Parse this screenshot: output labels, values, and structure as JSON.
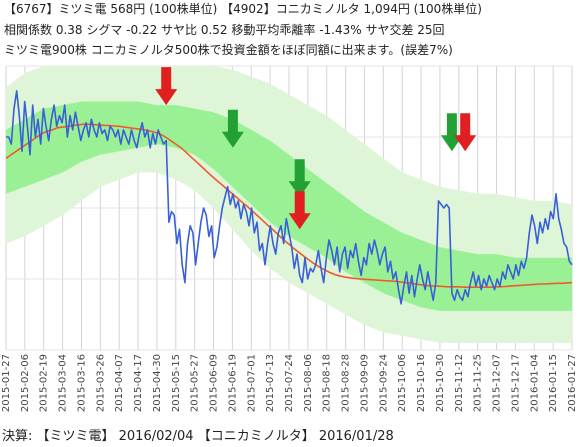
{
  "header": {
    "line1": "【6767】ミツミ電  568円 (100株単位) 【4902】コニカミノルタ 1,094円 (100株単位)",
    "line2": "相関係数 0.38 シグマ -0.22 サヤ比 0.52 移動平均乖離率 -1.43% サヤ交差 25回",
    "line3": "ミツミ電900株 コニカミノルタ500株で投資金額をほぼ同額に出来ます。(誤差7%)"
  },
  "footer": "決算: 【ミツミ電】 2016/02/04 【コニカミノルタ】 2016/01/28",
  "colors": {
    "ratio_line": "#3a5fd8",
    "moving_average": "#f05a28",
    "band_outer": "#dff5d8",
    "band_inner": "#8ef08a",
    "buy_arrow": "#22a033",
    "sell_arrow": "#e02020",
    "grid": "#d4d4d4"
  },
  "chart_data": {
    "type": "line",
    "x_ticks": [
      "2015-01-27",
      "2015-02-06",
      "2015-02-19",
      "2015-03-04",
      "2015-03-16",
      "2015-03-26",
      "2015-04-07",
      "2015-04-17",
      "2015-04-30",
      "2015-05-15",
      "2015-05-27",
      "2015-06-09",
      "2015-06-19",
      "2015-07-01",
      "2015-07-13",
      "2015-07-24",
      "2015-08-06",
      "2015-08-18",
      "2015-08-28",
      "2015-09-09",
      "2015-09-24",
      "2015-10-06",
      "2015-10-16",
      "2015-10-30",
      "2015-11-12",
      "2015-11-25",
      "2015-12-07",
      "2015-12-17",
      "2016-01-04",
      "2016-01-15",
      "2016-01-27"
    ],
    "series": [
      {
        "values": [
          0.6,
          0.6,
          0.58,
          0.68,
          0.73,
          0.66,
          0.56,
          0.7,
          0.63,
          0.55,
          0.69,
          0.6,
          0.65,
          0.58,
          0.68,
          0.63,
          0.59,
          0.65,
          0.69,
          0.63,
          0.66,
          0.64,
          0.69,
          0.6,
          0.66,
          0.62,
          0.67,
          0.63,
          0.59,
          0.62,
          0.64,
          0.6,
          0.65,
          0.62,
          0.6,
          0.64,
          0.61,
          0.62,
          0.59,
          0.63,
          0.62,
          0.6,
          0.62,
          0.58,
          0.62,
          0.6,
          0.58,
          0.62,
          0.59,
          0.57,
          0.61,
          0.64,
          0.6,
          0.62,
          0.57,
          0.61,
          0.58,
          0.62,
          0.6,
          0.58,
          0.59,
          0.36,
          0.39,
          0.38,
          0.3,
          0.34,
          0.24,
          0.19,
          0.3,
          0.35,
          0.33,
          0.24,
          0.3,
          0.36,
          0.4,
          0.38,
          0.32,
          0.35,
          0.26,
          0.29,
          0.35,
          0.4,
          0.43,
          0.46,
          0.41,
          0.44,
          0.4,
          0.42,
          0.37,
          0.41,
          0.39,
          0.35,
          0.4,
          0.33,
          0.36,
          0.28,
          0.3,
          0.24,
          0.3,
          0.35,
          0.3,
          0.27,
          0.33,
          0.35,
          0.3,
          0.37,
          0.33,
          0.29,
          0.23,
          0.27,
          0.21,
          0.19,
          0.26,
          0.2,
          0.23,
          0.22,
          0.24,
          0.28,
          0.23,
          0.19,
          0.26,
          0.31,
          0.28,
          0.24,
          0.29,
          0.22,
          0.27,
          0.29,
          0.23,
          0.28,
          0.26,
          0.3,
          0.25,
          0.21,
          0.26,
          0.24,
          0.3,
          0.27,
          0.31,
          0.28,
          0.24,
          0.27,
          0.29,
          0.22,
          0.25,
          0.2,
          0.22,
          0.17,
          0.13,
          0.18,
          0.22,
          0.16,
          0.21,
          0.15,
          0.2,
          0.24,
          0.2,
          0.17,
          0.22,
          0.18,
          0.14,
          0.19,
          0.42,
          0.41,
          0.4,
          0.41,
          0.4,
          0.16,
          0.14,
          0.17,
          0.15,
          0.14,
          0.17,
          0.15,
          0.19,
          0.22,
          0.18,
          0.21,
          0.17,
          0.2,
          0.18,
          0.21,
          0.19,
          0.17,
          0.2,
          0.18,
          0.22,
          0.2,
          0.24,
          0.22,
          0.2,
          0.24,
          0.21,
          0.25,
          0.23,
          0.26,
          0.33,
          0.38,
          0.35,
          0.3,
          0.36,
          0.33,
          0.37,
          0.34,
          0.39,
          0.37,
          0.44,
          0.37,
          0.34,
          0.3,
          0.29,
          0.25,
          0.24
        ],
        "color": "#3a5fd8"
      },
      {
        "values": [
          0.54,
          0.55,
          0.56,
          0.57,
          0.58,
          0.59,
          0.6,
          0.61,
          0.616,
          0.62,
          0.626,
          0.628,
          0.63,
          0.632,
          0.634,
          0.636,
          0.636,
          0.635,
          0.634,
          0.633,
          0.632,
          0.631,
          0.63,
          0.628,
          0.626,
          0.624,
          0.622,
          0.62,
          0.617,
          0.613,
          0.608,
          0.6,
          0.59,
          0.58,
          0.57,
          0.557,
          0.543,
          0.53,
          0.517,
          0.503,
          0.49,
          0.477,
          0.465,
          0.452,
          0.44,
          0.428,
          0.415,
          0.403,
          0.39,
          0.377,
          0.363,
          0.35,
          0.337,
          0.323,
          0.31,
          0.298,
          0.285,
          0.274,
          0.263,
          0.252,
          0.242,
          0.233,
          0.225,
          0.218,
          0.212,
          0.208,
          0.205,
          0.203,
          0.201,
          0.2,
          0.199,
          0.198,
          0.197,
          0.196,
          0.195,
          0.194,
          0.193,
          0.191,
          0.189,
          0.187,
          0.185,
          0.183,
          0.181,
          0.18,
          0.18,
          0.179,
          0.178,
          0.178,
          0.178,
          0.177,
          0.177,
          0.177,
          0.177,
          0.177,
          0.177,
          0.178,
          0.178,
          0.179,
          0.18,
          0.181,
          0.182,
          0.183,
          0.184,
          0.185,
          0.186,
          0.186,
          0.187,
          0.188,
          0.188,
          0.189,
          0.19
        ],
        "color": "#f05a28"
      }
    ],
    "ylim": [
      0,
      0.8
    ],
    "bands": {
      "outer_upper": [
        0.74,
        0.78,
        0.8,
        0.8,
        0.8,
        0.8,
        0.8,
        0.8,
        0.8,
        0.8,
        0.8,
        0.8,
        0.79,
        0.77,
        0.75,
        0.72,
        0.69,
        0.66,
        0.62,
        0.58,
        0.54,
        0.5,
        0.48,
        0.46,
        0.45,
        0.44,
        0.44,
        0.43,
        0.42,
        0.42,
        0.41
      ],
      "inner_upper": [
        0.62,
        0.65,
        0.68,
        0.69,
        0.7,
        0.7,
        0.7,
        0.7,
        0.69,
        0.69,
        0.68,
        0.67,
        0.65,
        0.62,
        0.59,
        0.55,
        0.51,
        0.47,
        0.43,
        0.39,
        0.36,
        0.33,
        0.31,
        0.29,
        0.28,
        0.27,
        0.27,
        0.26,
        0.26,
        0.26,
        0.26
      ],
      "inner_lower": [
        0.44,
        0.46,
        0.48,
        0.5,
        0.53,
        0.55,
        0.56,
        0.57,
        0.58,
        0.57,
        0.55,
        0.51,
        0.46,
        0.41,
        0.36,
        0.32,
        0.29,
        0.26,
        0.22,
        0.19,
        0.16,
        0.14,
        0.12,
        0.11,
        0.11,
        0.11,
        0.11,
        0.11,
        0.11,
        0.11,
        0.11
      ],
      "outer_lower": [
        0.3,
        0.32,
        0.35,
        0.38,
        0.42,
        0.46,
        0.48,
        0.5,
        0.5,
        0.48,
        0.45,
        0.4,
        0.34,
        0.28,
        0.23,
        0.19,
        0.16,
        0.13,
        0.1,
        0.07,
        0.05,
        0.04,
        0.03,
        0.02,
        0.02,
        0.02,
        0.02,
        0.02,
        0.02,
        0.02,
        0.02
      ]
    },
    "signals": [
      {
        "type": "sell",
        "x_index": 60,
        "y": 0.69
      },
      {
        "type": "buy",
        "x_index": 85,
        "y": 0.57
      },
      {
        "type": "buy",
        "x_index": 110,
        "y": 0.43
      },
      {
        "type": "sell",
        "x_index": 110,
        "y": 0.34
      },
      {
        "type": "buy",
        "x_index": 167,
        "y": 0.56
      },
      {
        "type": "sell",
        "x_index": 172,
        "y": 0.56
      }
    ]
  }
}
